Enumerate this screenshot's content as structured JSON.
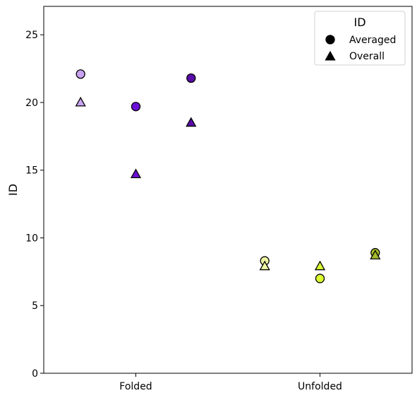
{
  "chart_data": {
    "type": "scatter",
    "title": "",
    "xlabel": "",
    "ylabel": "ID",
    "ylim": [
      0,
      27.1
    ],
    "yticks": [
      0,
      5,
      10,
      15,
      20,
      25
    ],
    "categories": [
      "Folded",
      "Unfolded"
    ],
    "grid": false,
    "legend": {
      "title": "ID",
      "placement": "top-right",
      "entries": [
        {
          "label": "Averaged",
          "marker": "circle"
        },
        {
          "label": "Overall",
          "marker": "triangle"
        }
      ]
    },
    "points": [
      {
        "category": "Folded",
        "offset": -0.3,
        "series": "Averaged",
        "value": 22.1,
        "color": "#c9a3f2"
      },
      {
        "category": "Folded",
        "offset": -0.3,
        "series": "Overall",
        "value": 20.0,
        "color": "#c9a3f2"
      },
      {
        "category": "Folded",
        "offset": 0.0,
        "series": "Averaged",
        "value": 19.7,
        "color": "#6b10d6"
      },
      {
        "category": "Folded",
        "offset": 0.0,
        "series": "Overall",
        "value": 14.7,
        "color": "#6b10d6"
      },
      {
        "category": "Folded",
        "offset": 0.3,
        "series": "Averaged",
        "value": 21.8,
        "color": "#5a0ba8"
      },
      {
        "category": "Folded",
        "offset": 0.3,
        "series": "Overall",
        "value": 18.5,
        "color": "#5a0ba8"
      },
      {
        "category": "Unfolded",
        "offset": -0.3,
        "series": "Averaged",
        "value": 8.3,
        "color": "#edf7a3"
      },
      {
        "category": "Unfolded",
        "offset": -0.3,
        "series": "Overall",
        "value": 7.9,
        "color": "#edf7a3"
      },
      {
        "category": "Unfolded",
        "offset": 0.0,
        "series": "Averaged",
        "value": 7.0,
        "color": "#dcfa30"
      },
      {
        "category": "Unfolded",
        "offset": 0.0,
        "series": "Overall",
        "value": 7.9,
        "color": "#dcfa30"
      },
      {
        "category": "Unfolded",
        "offset": 0.3,
        "series": "Averaged",
        "value": 8.9,
        "color": "#a7bd2b"
      },
      {
        "category": "Unfolded",
        "offset": 0.3,
        "series": "Overall",
        "value": 8.7,
        "color": "#a7bd2b"
      }
    ]
  }
}
